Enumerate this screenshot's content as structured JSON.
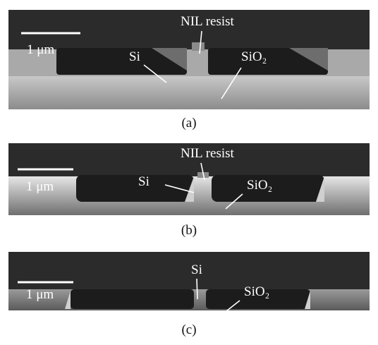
{
  "panels": [
    {
      "scale_bar": "1 μm",
      "labels": [
        "NIL resist",
        "Si",
        "SiO₂"
      ],
      "caption": "(a)"
    },
    {
      "scale_bar": "1 μm",
      "labels": [
        "NIL resist",
        "Si",
        "SiO₂"
      ],
      "caption": "(b)"
    },
    {
      "scale_bar": "1 μm",
      "labels": [
        "Si",
        "SiO₂"
      ],
      "caption": "(c)"
    }
  ]
}
